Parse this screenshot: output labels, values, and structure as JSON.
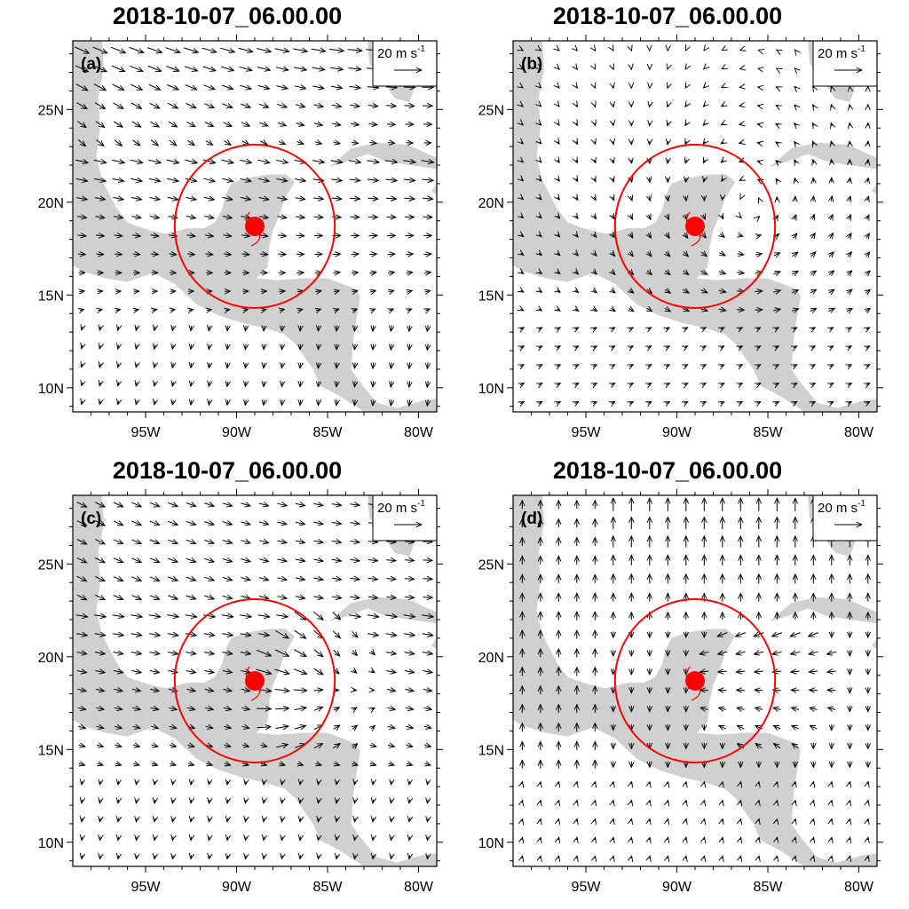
{
  "figure": {
    "panels": [
      {
        "id": "a",
        "title": "2018-10-07_06.00.00",
        "label": "(a)",
        "reference_vector": "20 m s",
        "reference_unit_exp": "-1"
      },
      {
        "id": "b",
        "title": "2018-10-07_06.00.00",
        "label": "(b)",
        "reference_vector": "20 m s",
        "reference_unit_exp": "-1"
      },
      {
        "id": "c",
        "title": "2018-10-07_06.00.00",
        "label": "(c)",
        "reference_vector": "20 m s",
        "reference_unit_exp": "-1"
      },
      {
        "id": "d",
        "title": "2018-10-07_06.00.00",
        "label": "(d)",
        "reference_vector": "20 m s",
        "reference_unit_exp": "-1"
      }
    ],
    "lat_ticks": [
      "10N",
      "15N",
      "20N",
      "25N"
    ],
    "lon_ticks": [
      "95W",
      "90W",
      "85W",
      "80W"
    ]
  },
  "map_extent": {
    "lon": [
      -99,
      -79
    ],
    "lat": [
      8.7,
      28.7
    ]
  },
  "storm": {
    "lon": -89.0,
    "lat": 18.7,
    "circle_radius_deg": 4.4,
    "color": "#ff0000"
  },
  "colors": {
    "land": "#d0d0d0",
    "vectors": "#000000",
    "frame": "#000000"
  },
  "vector_fields": {
    "a": "westerly flow with anticyclonic turning north of storm",
    "b": "cyclonic circulation centered east of storm",
    "c": "westerly flow converging into storm",
    "d": "northerly flow with convergence east of storm"
  }
}
